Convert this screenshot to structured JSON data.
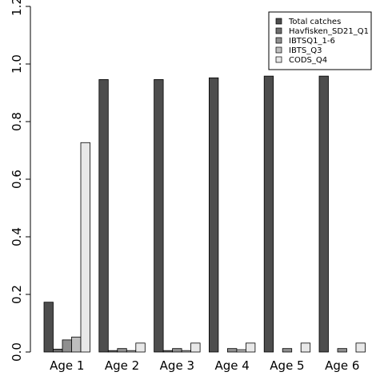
{
  "chart_data": {
    "type": "bar",
    "categories": [
      "Age 1",
      "Age 2",
      "Age 3",
      "Age 4",
      "Age 5",
      "Age 6"
    ],
    "series": [
      {
        "name": "Total catches",
        "color": "#4d4d4d",
        "values": [
          0.173,
          0.946,
          0.946,
          0.952,
          0.958,
          0.958
        ]
      },
      {
        "name": "Havfisken_SD21_Q1",
        "color": "#6e6e6e",
        "values": [
          0.01,
          0.005,
          0.005,
          0.0,
          0.0,
          0.0
        ]
      },
      {
        "name": "IBTSQ1_1-6",
        "color": "#8f8f8f",
        "values": [
          0.042,
          0.012,
          0.012,
          0.012,
          0.012,
          0.012
        ]
      },
      {
        "name": "IBTS_Q3",
        "color": "#bebebe",
        "values": [
          0.052,
          0.005,
          0.005,
          0.008,
          0.0,
          0.0
        ]
      },
      {
        "name": "CODS_Q4",
        "color": "#e8e8e8",
        "values": [
          0.727,
          0.031,
          0.031,
          0.031,
          0.031,
          0.031
        ]
      }
    ],
    "ylim": [
      0,
      1.2
    ],
    "yticks": [
      "0.0",
      "0.2",
      "0.4",
      "0.6",
      "0.8",
      "1.0",
      "1.2"
    ],
    "legend_position": "top-right",
    "grid": false,
    "title": "",
    "xlabel": "",
    "ylabel": ""
  }
}
